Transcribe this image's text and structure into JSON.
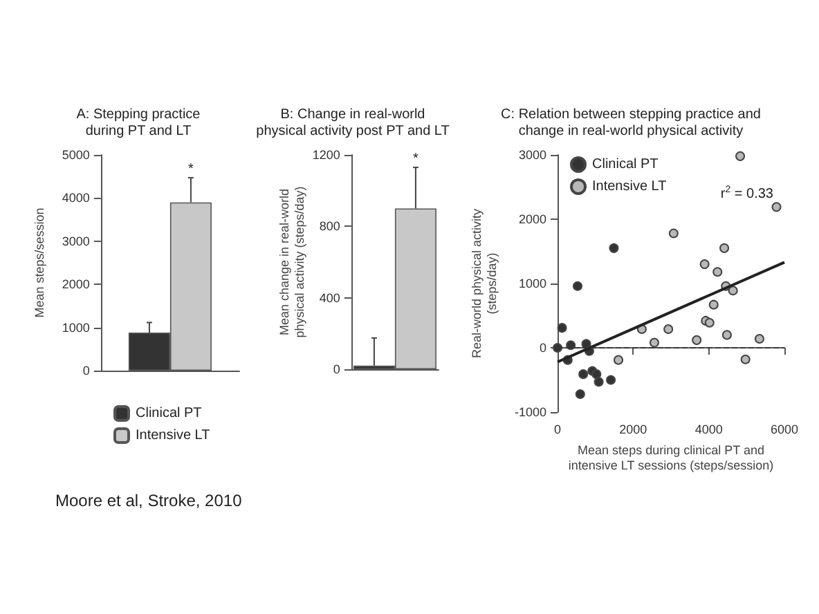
{
  "chart_data": [
    {
      "type": "bar",
      "title": "A: Stepping practice\nduring PT and LT",
      "ylabel": "Mean steps/session",
      "categories": [
        null
      ],
      "series": [
        {
          "name": "Clinical PT",
          "color": "#333333",
          "values": [
            880
          ],
          "errors": [
            235
          ]
        },
        {
          "name": "Intensive LT",
          "color": "#c8c8c8",
          "values": [
            3900
          ],
          "errors": [
            570
          ]
        }
      ],
      "ylim": [
        0,
        5000
      ],
      "yticks": [
        0,
        1000,
        2000,
        3000,
        4000,
        5000
      ],
      "grid": false,
      "legend": "bottom",
      "annotations": [
        {
          "text": "*",
          "y": 4470
        },
        "Moore et al, Stroke, 2010"
      ]
    },
    {
      "type": "bar",
      "title": "B: Change in real-world\nphysical activity post PT and LT",
      "ylabel": "Mean change in real-world\nphysical activity (steps/day)",
      "categories": [
        null
      ],
      "series": [
        {
          "color": "#333333",
          "values": [
            20
          ],
          "errors": [
            155
          ]
        },
        {
          "color": "#c8c8c8",
          "values": [
            900
          ],
          "errors": [
            230
          ]
        }
      ],
      "ylim": [
        0,
        1200
      ],
      "yticks": [
        0,
        400,
        800,
        1200
      ],
      "grid": false,
      "legend": false,
      "annotations": [
        {
          "text": "*",
          "y": 1130
        }
      ]
    },
    {
      "type": "scatter",
      "title": "C: Relation between stepping practice and\nchange in real-world physical activity",
      "xlabel": "Mean steps during clinical PT and\nintensive LT sessions (steps/session)",
      "ylabel": "Real-world physical activity\n(steps/day)",
      "series": [
        {
          "name": "Clinical PT",
          "color": "#333333",
          "marker": "circle",
          "x": [
            0,
            120,
            270,
            350,
            530,
            600,
            680,
            760,
            840,
            920,
            1030,
            1090,
            1410,
            1490
          ],
          "values": [
            0,
            310,
            -190,
            40,
            960,
            -720,
            -410,
            60,
            -50,
            -360,
            -410,
            -530,
            -500,
            1550
          ]
        },
        {
          "name": "Intensive LT",
          "color": "#b8b8b8",
          "marker": "circle",
          "x": [
            1610,
            2230,
            2560,
            2930,
            3070,
            3680,
            3890,
            3920,
            4020,
            4130,
            4230,
            4410,
            4450,
            4480,
            4640,
            4830,
            4970,
            5340,
            5790
          ],
          "values": [
            -190,
            290,
            80,
            290,
            1780,
            120,
            1300,
            420,
            390,
            670,
            1180,
            1550,
            960,
            200,
            890,
            2980,
            -180,
            140,
            2190
          ]
        },
        {
          "type": "line",
          "color": "#222222",
          "x": [
            0,
            6000
          ],
          "values": [
            -220,
            1330
          ]
        }
      ],
      "xlim": [
        0,
        6000
      ],
      "xticks": [
        0,
        2000,
        4000,
        6000
      ],
      "ylim": [
        -1000,
        3000
      ],
      "yticks": [
        -1000,
        0,
        1000,
        2000,
        3000
      ],
      "grid": false,
      "legend": "top left",
      "ref_lines": [
        {
          "axis": "y",
          "value": 0,
          "line_style": "dashed",
          "color": "#333333"
        }
      ],
      "annotations": [
        "r$^{2}$ = 0.33"
      ]
    }
  ]
}
